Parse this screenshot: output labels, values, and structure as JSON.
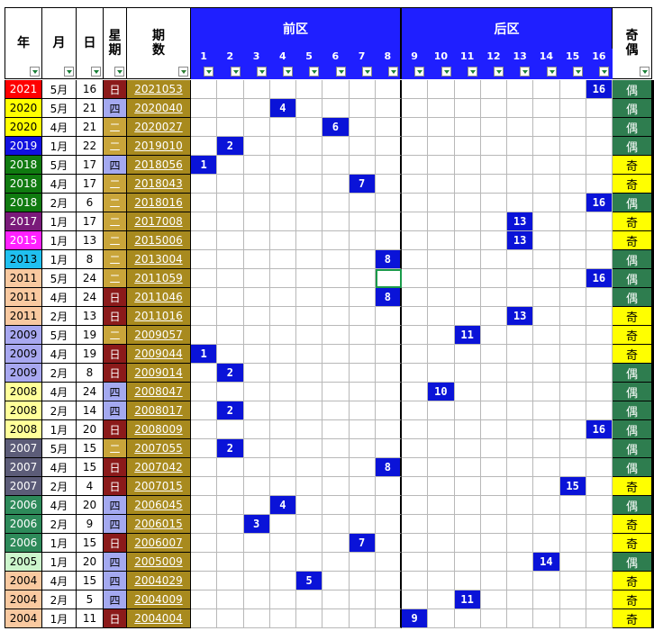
{
  "headers": {
    "year": "年",
    "month": "月",
    "day": "日",
    "weekday_1": "星",
    "weekday_2": "期",
    "period_1": "期",
    "period_2": "数",
    "front_zone": "前区",
    "back_zone": "后区",
    "odd_even_1": "奇",
    "odd_even_2": "偶"
  },
  "front_numbers": [
    "1",
    "2",
    "3",
    "4",
    "5",
    "6",
    "7",
    "8"
  ],
  "back_numbers": [
    "9",
    "10",
    "11",
    "12",
    "13",
    "14",
    "15",
    "16"
  ],
  "colors": {
    "zone_header": "#1f1fff",
    "mark": "#0a13d8",
    "period_bg": "#a88a1e",
    "odd": "#ffff00",
    "even": "#2e7d4f",
    "weekday_sun": "#8b1a1a",
    "weekday_mid": "#c9a53a",
    "weekday_thu": "#a4a9f0"
  },
  "rows": [
    {
      "year": "2021",
      "month": "5月",
      "day": "16",
      "weekday": "日",
      "period": "2021053",
      "mark": "16",
      "oe": "偶",
      "ycolor": "#ff0000",
      "ytext": "#ffffff"
    },
    {
      "year": "2020",
      "month": "5月",
      "day": "21",
      "weekday": "四",
      "period": "2020040",
      "mark": "4",
      "oe": "偶",
      "ycolor": "#ffff00",
      "ytext": "#000000"
    },
    {
      "year": "2020",
      "month": "4月",
      "day": "21",
      "weekday": "二",
      "period": "2020027",
      "mark": "6",
      "oe": "偶",
      "ycolor": "#ffff00",
      "ytext": "#000000"
    },
    {
      "year": "2019",
      "month": "1月",
      "day": "22",
      "weekday": "二",
      "period": "2019010",
      "mark": "2",
      "oe": "偶",
      "ycolor": "#1010e0",
      "ytext": "#ffffff"
    },
    {
      "year": "2018",
      "month": "5月",
      "day": "17",
      "weekday": "四",
      "period": "2018056",
      "mark": "1",
      "oe": "奇",
      "ycolor": "#107a10",
      "ytext": "#ffffff"
    },
    {
      "year": "2018",
      "month": "4月",
      "day": "17",
      "weekday": "二",
      "period": "2018043",
      "mark": "7",
      "oe": "奇",
      "ycolor": "#107a10",
      "ytext": "#ffffff"
    },
    {
      "year": "2018",
      "month": "2月",
      "day": "6",
      "weekday": "二",
      "period": "2018016",
      "mark": "16",
      "oe": "偶",
      "ycolor": "#107a10",
      "ytext": "#ffffff"
    },
    {
      "year": "2017",
      "month": "1月",
      "day": "17",
      "weekday": "二",
      "period": "2017008",
      "mark": "13",
      "oe": "奇",
      "ycolor": "#7a1a7a",
      "ytext": "#ffffff"
    },
    {
      "year": "2015",
      "month": "1月",
      "day": "13",
      "weekday": "二",
      "period": "2015006",
      "mark": "13",
      "oe": "奇",
      "ycolor": "#ff20ff",
      "ytext": "#ffffff"
    },
    {
      "year": "2013",
      "month": "1月",
      "day": "8",
      "weekday": "二",
      "period": "2013004",
      "mark": "8",
      "oe": "偶",
      "ycolor": "#20c0f0",
      "ytext": "#000000"
    },
    {
      "year": "2011",
      "month": "5月",
      "day": "24",
      "weekday": "二",
      "period": "2011059",
      "mark": "16",
      "oe": "偶",
      "ycolor": "#f9c9a0",
      "ytext": "#000000"
    },
    {
      "year": "2011",
      "month": "4月",
      "day": "24",
      "weekday": "日",
      "period": "2011046",
      "mark": "8",
      "oe": "偶",
      "ycolor": "#f9c9a0",
      "ytext": "#000000"
    },
    {
      "year": "2011",
      "month": "2月",
      "day": "13",
      "weekday": "日",
      "period": "2011016",
      "mark": "13",
      "oe": "奇",
      "ycolor": "#f9c9a0",
      "ytext": "#000000"
    },
    {
      "year": "2009",
      "month": "5月",
      "day": "19",
      "weekday": "二",
      "period": "2009057",
      "mark": "11",
      "oe": "奇",
      "ycolor": "#a8a8f0",
      "ytext": "#000000"
    },
    {
      "year": "2009",
      "month": "4月",
      "day": "19",
      "weekday": "日",
      "period": "2009044",
      "mark": "1",
      "oe": "奇",
      "ycolor": "#a8a8f0",
      "ytext": "#000000"
    },
    {
      "year": "2009",
      "month": "2月",
      "day": "8",
      "weekday": "日",
      "period": "2009014",
      "mark": "2",
      "oe": "偶",
      "ycolor": "#a8a8f0",
      "ytext": "#000000"
    },
    {
      "year": "2008",
      "month": "4月",
      "day": "24",
      "weekday": "四",
      "period": "2008047",
      "mark": "10",
      "oe": "偶",
      "ycolor": "#ffff99",
      "ytext": "#000000"
    },
    {
      "year": "2008",
      "month": "2月",
      "day": "14",
      "weekday": "四",
      "period": "2008017",
      "mark": "2",
      "oe": "偶",
      "ycolor": "#ffff99",
      "ytext": "#000000"
    },
    {
      "year": "2008",
      "month": "1月",
      "day": "20",
      "weekday": "日",
      "period": "2008009",
      "mark": "16",
      "oe": "偶",
      "ycolor": "#ffff99",
      "ytext": "#000000"
    },
    {
      "year": "2007",
      "month": "5月",
      "day": "15",
      "weekday": "二",
      "period": "2007055",
      "mark": "2",
      "oe": "偶",
      "ycolor": "#5c5c78",
      "ytext": "#ffffff"
    },
    {
      "year": "2007",
      "month": "4月",
      "day": "15",
      "weekday": "日",
      "period": "2007042",
      "mark": "8",
      "oe": "偶",
      "ycolor": "#5c5c78",
      "ytext": "#ffffff"
    },
    {
      "year": "2007",
      "month": "2月",
      "day": "4",
      "weekday": "日",
      "period": "2007015",
      "mark": "15",
      "oe": "奇",
      "ycolor": "#5c5c78",
      "ytext": "#ffffff"
    },
    {
      "year": "2006",
      "month": "4月",
      "day": "20",
      "weekday": "四",
      "period": "2006045",
      "mark": "4",
      "oe": "偶",
      "ycolor": "#2e8a5a",
      "ytext": "#ffffff"
    },
    {
      "year": "2006",
      "month": "2月",
      "day": "9",
      "weekday": "四",
      "period": "2006015",
      "mark": "3",
      "oe": "奇",
      "ycolor": "#2e8a5a",
      "ytext": "#ffffff"
    },
    {
      "year": "2006",
      "month": "1月",
      "day": "15",
      "weekday": "日",
      "period": "2006007",
      "mark": "7",
      "oe": "奇",
      "ycolor": "#2e8a5a",
      "ytext": "#ffffff"
    },
    {
      "year": "2005",
      "month": "1月",
      "day": "20",
      "weekday": "四",
      "period": "2005009",
      "mark": "14",
      "oe": "偶",
      "ycolor": "#ccf5cc",
      "ytext": "#000000"
    },
    {
      "year": "2004",
      "month": "4月",
      "day": "15",
      "weekday": "四",
      "period": "2004029",
      "mark": "5",
      "oe": "奇",
      "ycolor": "#f9c9a0",
      "ytext": "#000000"
    },
    {
      "year": "2004",
      "month": "2月",
      "day": "5",
      "weekday": "四",
      "period": "2004009",
      "mark": "11",
      "oe": "奇",
      "ycolor": "#f9c9a0",
      "ytext": "#000000"
    },
    {
      "year": "2004",
      "month": "1月",
      "day": "11",
      "weekday": "日",
      "period": "2004004",
      "mark": "9",
      "oe": "奇",
      "ycolor": "#f9c9a0",
      "ytext": "#000000"
    }
  ]
}
